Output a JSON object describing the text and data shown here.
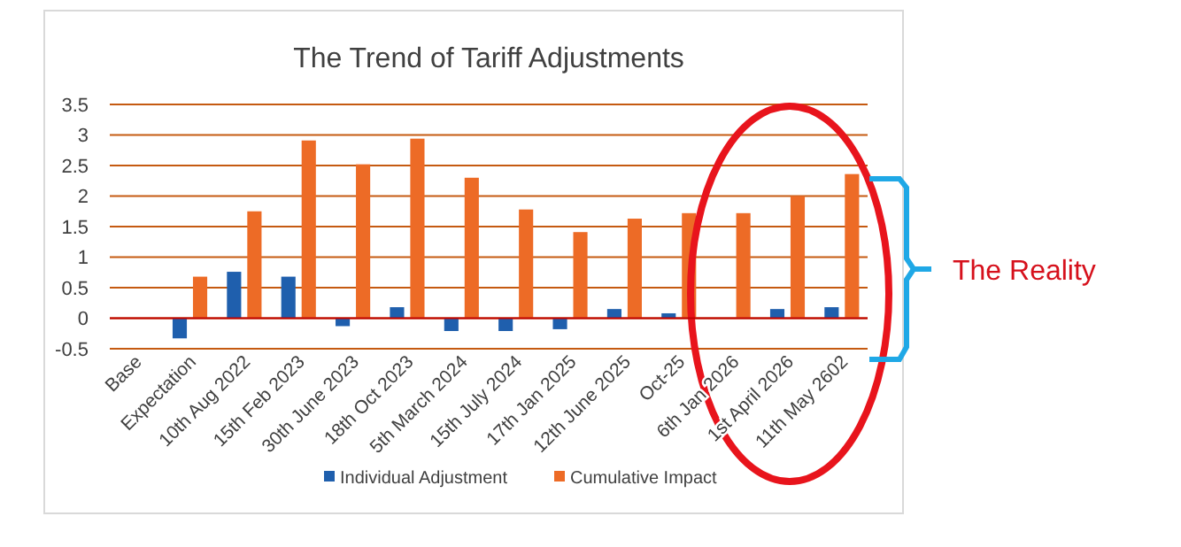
{
  "chart_data": {
    "type": "bar",
    "title": "The Trend of Tariff Adjustments",
    "categories": [
      "Base",
      "Expectation",
      "10th Aug 2022",
      "15th Feb 2023",
      "30th June 2023",
      "18th Oct 2023",
      "5th March 2024",
      "15th July 2024",
      "17th Jan 2025",
      "12th June 2025",
      "Oct-25",
      "6th Jan 2026",
      "1st April 2026",
      "11th May 2602"
    ],
    "series": [
      {
        "name": "Individual Adjustment",
        "color": "#1f5fad",
        "values": [
          0,
          -0.33,
          0.76,
          0.68,
          -0.13,
          0.18,
          -0.21,
          -0.21,
          -0.18,
          0.15,
          0.08,
          0,
          0.15,
          0.18
        ]
      },
      {
        "name": "Cumulative Impact",
        "color": "#ed6b26",
        "values": [
          0,
          0.68,
          1.75,
          2.91,
          2.52,
          2.94,
          2.3,
          1.78,
          1.41,
          1.63,
          1.72,
          1.72,
          2.0,
          2.36
        ]
      }
    ],
    "ylim": [
      -0.5,
      3.5
    ],
    "yticks": [
      -0.5,
      0,
      0.5,
      1,
      1.5,
      2,
      2.5,
      3,
      3.5
    ],
    "grid": "y",
    "legend": "bottom",
    "ref_lines": [
      {
        "axis": "y",
        "value": 0,
        "color": "#c00000"
      }
    ],
    "annotations": [
      "The Reality"
    ]
  }
}
